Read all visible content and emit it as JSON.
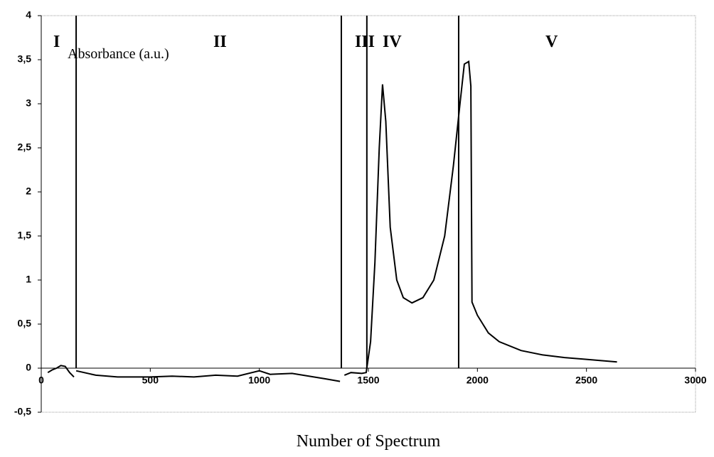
{
  "chart_data": {
    "type": "line",
    "y_label": "Absorbance (a.u.)",
    "x_label": "Number of Spectrum",
    "regions": [
      "I",
      "II",
      "III",
      "IV",
      "V"
    ],
    "dividers": [
      160,
      1376,
      1493,
      1914
    ],
    "color": "#000000",
    "x": [
      30,
      50,
      70,
      90,
      110,
      130,
      150,
      151,
      160,
      250,
      350,
      500,
      600,
      700,
      800,
      900,
      1000,
      1050,
      1150,
      1250,
      1300,
      1370,
      1380,
      1390,
      1420,
      1470,
      1490,
      1510,
      1530,
      1550,
      1565,
      1580,
      1600,
      1630,
      1660,
      1700,
      1750,
      1800,
      1850,
      1890,
      1920,
      1940,
      1960,
      1970,
      1975,
      2000,
      2050,
      2100,
      2200,
      2300,
      2400,
      2500,
      2640
    ],
    "values": [
      -0.05,
      -0.02,
      0.0,
      0.03,
      0.02,
      -0.05,
      -0.1,
      null,
      -0.03,
      -0.08,
      -0.1,
      -0.1,
      -0.09,
      -0.1,
      -0.08,
      -0.09,
      -0.03,
      -0.07,
      -0.06,
      -0.1,
      -0.12,
      -0.15,
      null,
      -0.08,
      -0.05,
      -0.06,
      -0.05,
      0.3,
      1.2,
      2.5,
      3.22,
      2.8,
      1.6,
      1.0,
      0.8,
      0.74,
      0.8,
      1.0,
      1.5,
      2.3,
      3.0,
      3.45,
      3.48,
      3.2,
      0.75,
      0.6,
      0.4,
      0.3,
      0.2,
      0.15,
      0.12,
      0.1,
      0.07
    ],
    "xlim": [
      0,
      3000
    ],
    "xticks": [
      0,
      500,
      1000,
      1500,
      2000,
      2500,
      3000
    ],
    "ylim": [
      -0.5,
      4
    ],
    "yticks": [
      {
        "value": -0.5,
        "label": "-0,5"
      },
      0,
      {
        "value": 0.5,
        "label": "0,5"
      },
      1,
      {
        "value": 1.5,
        "label": "1,5"
      },
      2,
      {
        "value": 2.5,
        "label": "2,5"
      },
      3,
      {
        "value": 3.5,
        "label": "3,5"
      },
      4
    ]
  }
}
